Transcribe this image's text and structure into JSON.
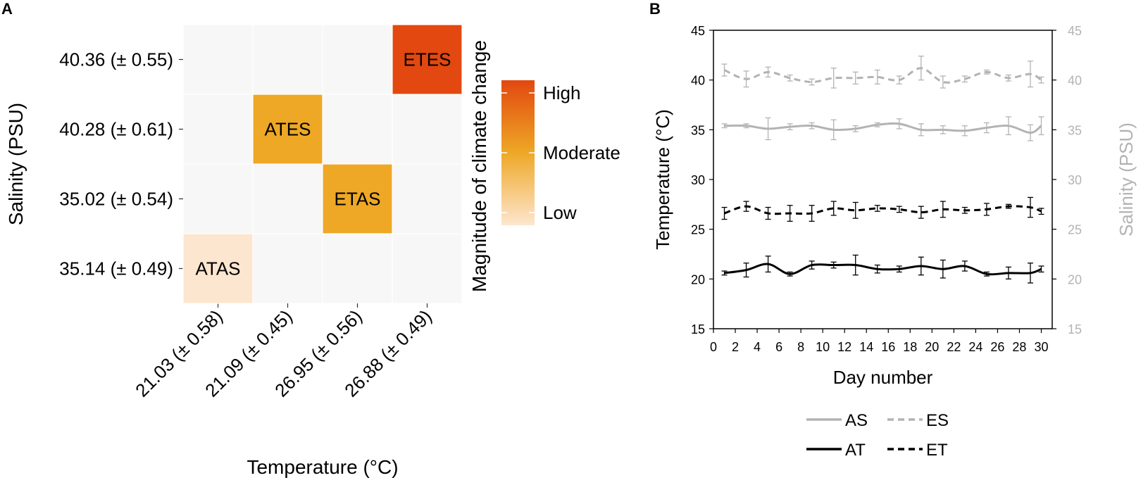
{
  "chart_data": [
    {
      "panel": "A",
      "type": "heatmap",
      "xlabel": "Temperature (°C)",
      "ylabel": "Salinity (PSU)",
      "x_categories": [
        "21.03 (± 0.58)",
        "21.09 (± 0.45)",
        "26.95 (± 0.56)",
        "26.88 (± 0.49)"
      ],
      "y_categories_top_to_bottom": [
        "40.36 (± 0.55)",
        "40.28 (± 0.61)",
        "35.02 (± 0.54)",
        "35.14 (± 0.49)"
      ],
      "cells": [
        {
          "label": "ATAS",
          "x": 0,
          "y": 3,
          "magnitude": "Low",
          "color": "#fde6cf"
        },
        {
          "label": "ATES",
          "x": 1,
          "y": 1,
          "magnitude": "Moderate",
          "color": "#eea826"
        },
        {
          "label": "ETAS",
          "x": 2,
          "y": 2,
          "magnitude": "Moderate",
          "color": "#eea826"
        },
        {
          "label": "ETES",
          "x": 3,
          "y": 0,
          "magnitude": "High",
          "color": "#e2480f"
        }
      ],
      "empty_color": "#f7f7f7",
      "legend": {
        "title": "Magnitude of climate change",
        "levels": [
          "High",
          "Moderate",
          "Low"
        ],
        "colors": [
          "#e2480f",
          "#eea826",
          "#fde6cf"
        ]
      }
    },
    {
      "panel": "B",
      "type": "line",
      "xlabel": "Day number",
      "ylabel": "Temperature (°C)",
      "y2label": "Salinity (PSU)",
      "xlim": [
        0,
        31
      ],
      "xticks": [
        0,
        2,
        4,
        6,
        8,
        10,
        12,
        14,
        16,
        18,
        20,
        22,
        24,
        26,
        28,
        30
      ],
      "ylim": [
        15,
        45
      ],
      "yticks": [
        15,
        20,
        25,
        30,
        35,
        40,
        45
      ],
      "y2ticks": [
        15,
        20,
        25,
        30,
        35,
        40,
        45
      ],
      "x": [
        1,
        3,
        5,
        7,
        9,
        11,
        13,
        15,
        17,
        19,
        21,
        23,
        25,
        27,
        29,
        30
      ],
      "series": [
        {
          "name": "ES",
          "style": "dashed",
          "color": "#b3b3b3",
          "values": [
            41.0,
            40.1,
            40.8,
            40.2,
            39.8,
            40.2,
            40.2,
            40.3,
            40.0,
            41.2,
            39.8,
            40.1,
            40.8,
            40.2,
            40.6,
            40.0
          ],
          "errors": [
            0.6,
            0.8,
            0.5,
            0.3,
            0.3,
            1.0,
            0.6,
            0.7,
            0.4,
            1.2,
            0.6,
            0.3,
            0.2,
            0.3,
            1.3,
            0.3
          ]
        },
        {
          "name": "AS",
          "style": "solid",
          "color": "#b3b3b3",
          "values": [
            35.4,
            35.4,
            35.1,
            35.3,
            35.4,
            35.0,
            35.1,
            35.5,
            35.6,
            35.0,
            35.0,
            34.9,
            35.2,
            35.4,
            34.7,
            35.4
          ],
          "errors": [
            0.2,
            0.2,
            1.1,
            0.3,
            0.3,
            1.0,
            0.3,
            0.2,
            0.5,
            0.6,
            0.4,
            0.5,
            0.5,
            0.9,
            0.8,
            0.9
          ]
        },
        {
          "name": "ET",
          "style": "dashed",
          "color": "#000000",
          "values": [
            26.6,
            27.3,
            26.6,
            26.6,
            26.6,
            27.1,
            26.9,
            27.1,
            27.0,
            26.7,
            27.0,
            26.9,
            27.0,
            27.3,
            27.2,
            26.8
          ],
          "errors": [
            0.6,
            0.5,
            0.6,
            0.8,
            0.8,
            0.7,
            0.8,
            0.3,
            0.3,
            0.6,
            0.8,
            0.3,
            0.6,
            0.2,
            1.0,
            0.3
          ]
        },
        {
          "name": "AT",
          "style": "solid",
          "color": "#000000",
          "values": [
            20.6,
            20.9,
            21.5,
            20.5,
            21.4,
            21.4,
            21.4,
            21.0,
            21.0,
            21.3,
            21.0,
            21.3,
            20.5,
            20.6,
            20.6,
            21.0
          ],
          "errors": [
            0.2,
            0.7,
            0.8,
            0.2,
            0.4,
            0.3,
            1.0,
            0.4,
            0.3,
            0.9,
            0.9,
            0.5,
            0.2,
            0.6,
            1.0,
            0.3
          ]
        }
      ],
      "legend": [
        {
          "name": "AS",
          "style": "solid",
          "color": "#b3b3b3"
        },
        {
          "name": "ES",
          "style": "dashed",
          "color": "#b3b3b3"
        },
        {
          "name": "AT",
          "style": "solid",
          "color": "#000000"
        },
        {
          "name": "ET",
          "style": "dashed",
          "color": "#000000"
        }
      ]
    }
  ],
  "labels": {
    "panel_a": "A",
    "panel_b": "B"
  }
}
